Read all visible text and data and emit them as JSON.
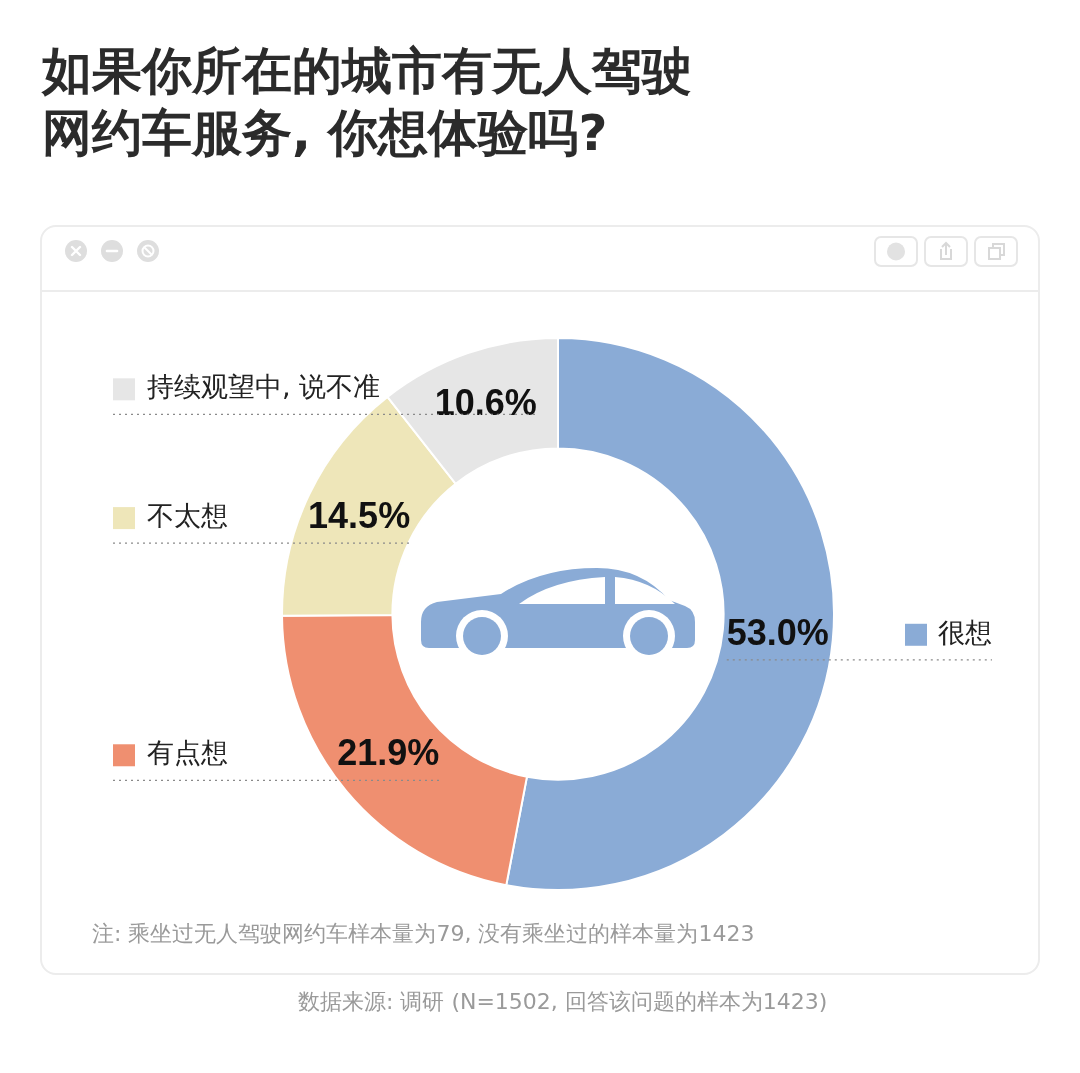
{
  "chart_data": {
    "type": "donut",
    "title": "如果你所在的城市有无人驾驶网约车服务, 你想体验吗?",
    "categories": [
      "很想",
      "有点想",
      "不太想",
      "持续观望中, 说不准"
    ],
    "values": [
      53.0,
      21.9,
      14.5,
      10.6
    ],
    "colors": [
      "#8aabd6",
      "#ef8f70",
      "#eee6b9",
      "#e6e6e6"
    ],
    "value_labels": [
      "53.0%",
      "21.9%",
      "14.5%",
      "10.6%"
    ],
    "legend": "left",
    "annotations": [
      "注: 乘坐过无人驾驶网约车样本量为79, 没有乘坐过的样本量为1423",
      "数据来源: 调研 (N=1502, 回答该问题的样本为1423)"
    ]
  }
}
